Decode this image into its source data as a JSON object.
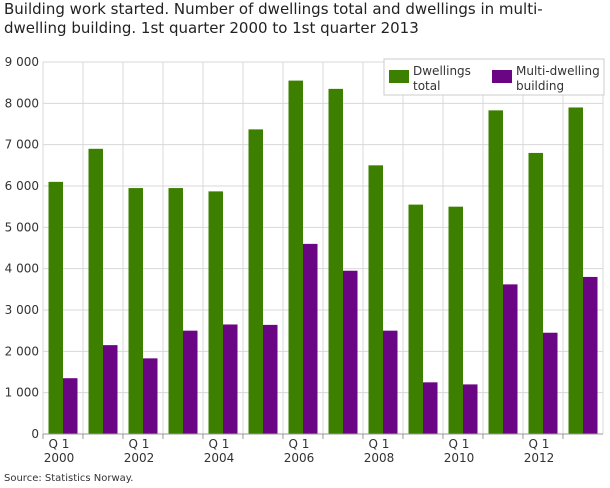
{
  "chart_data": {
    "type": "bar",
    "title": "Building work started. Number of dwellings total and dwellings in multi-dwelling building. 1st quarter 2000 to 1st quarter 2013",
    "source": "Source: Statistics Norway.",
    "categories": [
      "Q1 2000",
      "Q1 2001",
      "Q1 2002",
      "Q1 2003",
      "Q1 2004",
      "Q1 2005",
      "Q1 2006",
      "Q1 2007",
      "Q1 2008",
      "Q1 2009",
      "Q1 2010",
      "Q1 2011",
      "Q1 2012",
      "Q1 2013"
    ],
    "x_tick_labels": [
      [
        "Q 1",
        "2000"
      ],
      null,
      [
        "Q 1",
        "2002"
      ],
      null,
      [
        "Q 1",
        "2004"
      ],
      null,
      [
        "Q 1",
        "2006"
      ],
      null,
      [
        "Q 1",
        "2008"
      ],
      null,
      [
        "Q 1",
        "2010"
      ],
      null,
      [
        "Q 1",
        "2012"
      ],
      null
    ],
    "series": [
      {
        "name": "Dwellings total",
        "legend_lines": [
          "Dwellings",
          "total"
        ],
        "color": "#3d8000",
        "values": [
          6100,
          6900,
          5950,
          5950,
          5870,
          7370,
          8550,
          8350,
          6500,
          5550,
          5500,
          7830,
          6800,
          7900
        ]
      },
      {
        "name": "Multi-dwelling building",
        "legend_lines": [
          "Multi-dwelling",
          "building"
        ],
        "color": "#6a0583",
        "values": [
          1350,
          2150,
          1830,
          2500,
          2650,
          2640,
          4600,
          3950,
          2500,
          1250,
          1200,
          3620,
          2450,
          3800
        ]
      }
    ],
    "ylim": [
      0,
      9000
    ],
    "y_ticks": [
      0,
      1000,
      2000,
      3000,
      4000,
      5000,
      6000,
      7000,
      8000,
      9000
    ],
    "y_tick_labels": [
      "0",
      "1 000",
      "2 000",
      "3 000",
      "4 000",
      "5 000",
      "6 000",
      "7 000",
      "8 000",
      "9 000"
    ],
    "grid": true,
    "legend_position": "top-right"
  }
}
